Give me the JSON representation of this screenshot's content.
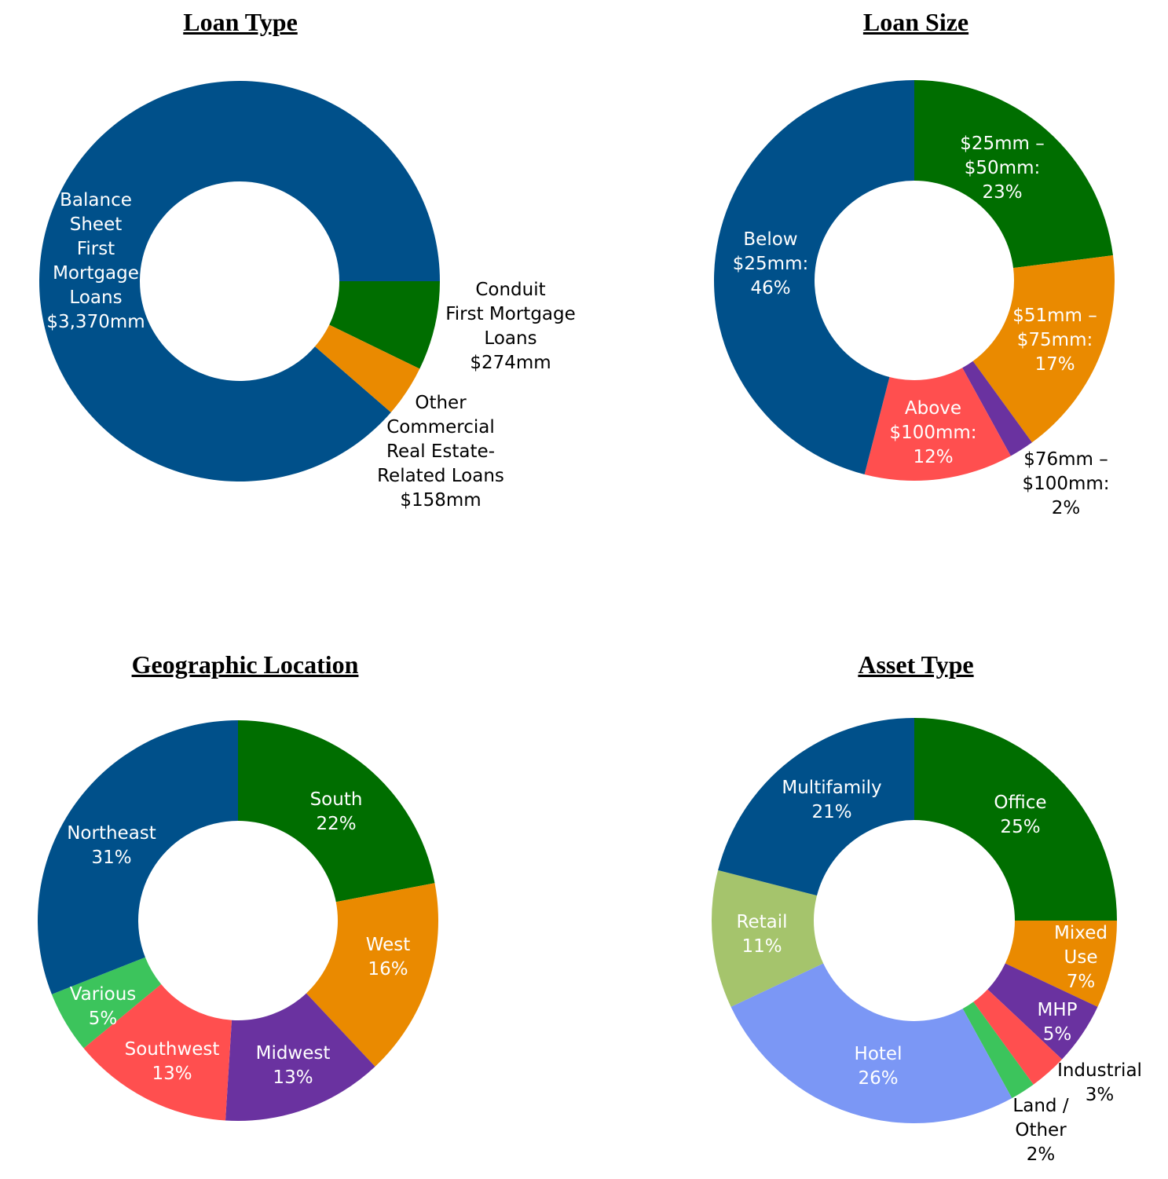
{
  "chart_data": [
    {
      "type": "pie",
      "title": "Loan Type",
      "donut": true,
      "slices": [
        {
          "name": "Balance Sheet First Mortgage Loans",
          "value": 3370,
          "unit": "$mm",
          "color": "#00508a",
          "label_lines": [
            "Balance",
            "Sheet",
            "First",
            "Mortgage",
            "Loans",
            "$3,370mm"
          ],
          "label_color": "#ffffff"
        },
        {
          "name": "Conduit First Mortgage Loans",
          "value": 274,
          "unit": "$mm",
          "color": "#006e00",
          "label_lines": [
            "Conduit",
            "First Mortgage",
            "Loans",
            "$274mm"
          ],
          "label_color": "#000000"
        },
        {
          "name": "Other Commercial Real Estate-Related Loans",
          "value": 158,
          "unit": "$mm",
          "color": "#ea8a00",
          "label_lines": [
            "Other",
            "Commercial",
            "Real Estate-",
            "Related Loans",
            "$158mm"
          ],
          "label_color": "#000000"
        }
      ]
    },
    {
      "type": "pie",
      "title": "Loan Size",
      "donut": true,
      "slices": [
        {
          "name": "$25mm – $50mm",
          "value": 23,
          "color": "#006e00",
          "label_lines": [
            "$25mm –",
            "$50mm:",
            "23%"
          ],
          "label_color": "#ffffff"
        },
        {
          "name": "$51mm – $75mm",
          "value": 17,
          "color": "#ea8a00",
          "label_lines": [
            "$51mm –",
            "$75mm:",
            "17%"
          ],
          "label_color": "#ffffff"
        },
        {
          "name": "$76mm – $100mm",
          "value": 2,
          "color": "#6a32a0",
          "label_lines": [
            "$76mm –",
            "$100mm:",
            "2%"
          ],
          "label_color": "#000000"
        },
        {
          "name": "Above $100mm",
          "value": 12,
          "color": "#ff4f4f",
          "label_lines": [
            "Above",
            "$100mm:",
            "12%"
          ],
          "label_color": "#ffffff"
        },
        {
          "name": "Below $25mm",
          "value": 46,
          "color": "#00508a",
          "label_lines": [
            "Below",
            "$25mm:",
            "46%"
          ],
          "label_color": "#ffffff"
        }
      ]
    },
    {
      "type": "pie",
      "title": "Geographic Location",
      "donut": true,
      "slices": [
        {
          "name": "South",
          "value": 22,
          "color": "#006e00",
          "label_lines": [
            "South",
            "22%"
          ],
          "label_color": "#ffffff"
        },
        {
          "name": "West",
          "value": 16,
          "color": "#ea8a00",
          "label_lines": [
            "West",
            "16%"
          ],
          "label_color": "#ffffff"
        },
        {
          "name": "Midwest",
          "value": 13,
          "color": "#6a32a0",
          "label_lines": [
            "Midwest",
            "13%"
          ],
          "label_color": "#ffffff"
        },
        {
          "name": "Southwest",
          "value": 13,
          "color": "#ff4f4f",
          "label_lines": [
            "Southwest",
            "13%"
          ],
          "label_color": "#ffffff"
        },
        {
          "name": "Various",
          "value": 5,
          "color": "#3cc45c",
          "label_lines": [
            "Various",
            "5%"
          ],
          "label_color": "#ffffff"
        },
        {
          "name": "Northeast",
          "value": 31,
          "color": "#00508a",
          "label_lines": [
            "Northeast",
            "31%"
          ],
          "label_color": "#ffffff"
        }
      ]
    },
    {
      "type": "pie",
      "title": "Asset Type",
      "donut": true,
      "slices": [
        {
          "name": "Office",
          "value": 25,
          "color": "#006e00",
          "label_lines": [
            "Office",
            "25%"
          ],
          "label_color": "#ffffff"
        },
        {
          "name": "Mixed Use",
          "value": 7,
          "color": "#ea8a00",
          "label_lines": [
            "Mixed",
            "Use",
            "7%"
          ],
          "label_color": "#ffffff"
        },
        {
          "name": "MHP",
          "value": 5,
          "color": "#6a32a0",
          "label_lines": [
            "MHP",
            "5%"
          ],
          "label_color": "#ffffff"
        },
        {
          "name": "Industrial",
          "value": 3,
          "color": "#ff4f4f",
          "label_lines": [
            "Industrial",
            "3%"
          ],
          "label_color": "#000000"
        },
        {
          "name": "Land / Other",
          "value": 2,
          "color": "#3cc45c",
          "label_lines": [
            "Land /",
            "Other",
            "2%"
          ],
          "label_color": "#000000"
        },
        {
          "name": "Hotel",
          "value": 26,
          "color": "#7b97f5",
          "label_lines": [
            "Hotel",
            "26%"
          ],
          "label_color": "#ffffff"
        },
        {
          "name": "Retail",
          "value": 11,
          "color": "#a5c46c",
          "label_lines": [
            "Retail",
            "11%"
          ],
          "label_color": "#ffffff"
        },
        {
          "name": "Multifamily",
          "value": 21,
          "color": "#00508a",
          "label_lines": [
            "Multifamily",
            "21%"
          ],
          "label_color": "#ffffff"
        }
      ]
    }
  ]
}
